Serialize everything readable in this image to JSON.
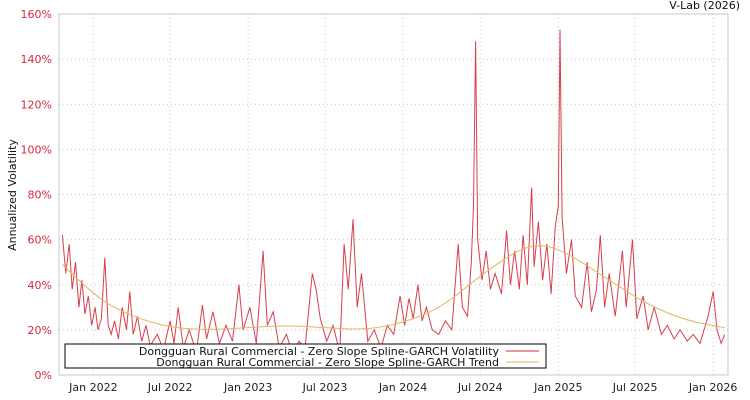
{
  "credit": "V-Lab (2026)",
  "chart_data": {
    "type": "line",
    "title": "",
    "xlabel": "",
    "ylabel": "Annualized Volatility",
    "ylim": [
      0,
      160
    ],
    "y_ticks": [
      "0%",
      "20%",
      "40%",
      "60%",
      "80%",
      "100%",
      "120%",
      "140%",
      "160%"
    ],
    "x_ticks": [
      "Jan 2022",
      "Jul 2022",
      "Jan 2023",
      "Jul 2023",
      "Jan 2024",
      "Jul 2024",
      "Jan 2025",
      "Jul 2025",
      "Jan 2026"
    ],
    "x_range": [
      "2021-10",
      "2026-02"
    ],
    "grid": true,
    "legend_position": "lower-left",
    "colors": {
      "volatility": "#d42a3a",
      "trend": "#e0b860",
      "ytick": "#d42a3a",
      "grid": "#c8c8c8"
    },
    "series": [
      {
        "name": "Dongguan Rural Commercial - Zero Slope Spline-GARCH Volatility",
        "points": [
          [
            "2021-10-20",
            62
          ],
          [
            "2021-10-28",
            45
          ],
          [
            "2021-11-05",
            58
          ],
          [
            "2021-11-12",
            38
          ],
          [
            "2021-11-20",
            50
          ],
          [
            "2021-11-28",
            30
          ],
          [
            "2021-12-05",
            42
          ],
          [
            "2021-12-12",
            27
          ],
          [
            "2021-12-20",
            35
          ],
          [
            "2021-12-28",
            22
          ],
          [
            "2022-01-05",
            30
          ],
          [
            "2022-01-12",
            20
          ],
          [
            "2022-01-20",
            25
          ],
          [
            "2022-01-28",
            52
          ],
          [
            "2022-02-05",
            22
          ],
          [
            "2022-02-12",
            18
          ],
          [
            "2022-02-20",
            24
          ],
          [
            "2022-03-01",
            16
          ],
          [
            "2022-03-10",
            30
          ],
          [
            "2022-03-20",
            20
          ],
          [
            "2022-03-28",
            37
          ],
          [
            "2022-04-05",
            18
          ],
          [
            "2022-04-15",
            26
          ],
          [
            "2022-04-25",
            15
          ],
          [
            "2022-05-05",
            22
          ],
          [
            "2022-05-15",
            13
          ],
          [
            "2022-06-01",
            18
          ],
          [
            "2022-06-15",
            11
          ],
          [
            "2022-07-01",
            24
          ],
          [
            "2022-07-10",
            14
          ],
          [
            "2022-07-20",
            30
          ],
          [
            "2022-08-01",
            12
          ],
          [
            "2022-08-15",
            20
          ],
          [
            "2022-09-01",
            10
          ],
          [
            "2022-09-15",
            31
          ],
          [
            "2022-09-25",
            16
          ],
          [
            "2022-10-10",
            28
          ],
          [
            "2022-10-25",
            14
          ],
          [
            "2022-11-10",
            22
          ],
          [
            "2022-11-25",
            15
          ],
          [
            "2022-12-10",
            40
          ],
          [
            "2022-12-20",
            20
          ],
          [
            "2023-01-05",
            30
          ],
          [
            "2023-01-20",
            14
          ],
          [
            "2023-02-05",
            55
          ],
          [
            "2023-02-15",
            22
          ],
          [
            "2023-03-01",
            28
          ],
          [
            "2023-03-15",
            12
          ],
          [
            "2023-04-01",
            18
          ],
          [
            "2023-04-15",
            10
          ],
          [
            "2023-05-01",
            15
          ],
          [
            "2023-05-15",
            12
          ],
          [
            "2023-06-01",
            45
          ],
          [
            "2023-06-10",
            38
          ],
          [
            "2023-06-20",
            25
          ],
          [
            "2023-07-05",
            15
          ],
          [
            "2023-07-20",
            22
          ],
          [
            "2023-08-05",
            10
          ],
          [
            "2023-08-15",
            58
          ],
          [
            "2023-08-25",
            38
          ],
          [
            "2023-09-05",
            69
          ],
          [
            "2023-09-15",
            30
          ],
          [
            "2023-09-25",
            45
          ],
          [
            "2023-10-10",
            15
          ],
          [
            "2023-10-25",
            20
          ],
          [
            "2023-11-10",
            12
          ],
          [
            "2023-11-25",
            22
          ],
          [
            "2023-12-10",
            18
          ],
          [
            "2023-12-25",
            35
          ],
          [
            "2024-01-05",
            22
          ],
          [
            "2024-01-15",
            34
          ],
          [
            "2024-01-25",
            25
          ],
          [
            "2024-02-05",
            40
          ],
          [
            "2024-02-15",
            24
          ],
          [
            "2024-02-25",
            30
          ],
          [
            "2024-03-10",
            20
          ],
          [
            "2024-03-25",
            18
          ],
          [
            "2024-04-10",
            24
          ],
          [
            "2024-04-25",
            20
          ],
          [
            "2024-05-10",
            58
          ],
          [
            "2024-05-20",
            30
          ],
          [
            "2024-06-01",
            26
          ],
          [
            "2024-06-10",
            50
          ],
          [
            "2024-06-15",
            75
          ],
          [
            "2024-06-20",
            148
          ],
          [
            "2024-06-25",
            60
          ],
          [
            "2024-07-05",
            42
          ],
          [
            "2024-07-15",
            55
          ],
          [
            "2024-07-25",
            38
          ],
          [
            "2024-08-05",
            45
          ],
          [
            "2024-08-20",
            36
          ],
          [
            "2024-09-01",
            64
          ],
          [
            "2024-09-10",
            40
          ],
          [
            "2024-09-20",
            55
          ],
          [
            "2024-10-01",
            38
          ],
          [
            "2024-10-10",
            62
          ],
          [
            "2024-10-20",
            40
          ],
          [
            "2024-10-30",
            83
          ],
          [
            "2024-11-05",
            48
          ],
          [
            "2024-11-15",
            68
          ],
          [
            "2024-11-25",
            42
          ],
          [
            "2024-12-05",
            58
          ],
          [
            "2024-12-15",
            36
          ],
          [
            "2024-12-25",
            66
          ],
          [
            "2025-01-01",
            75
          ],
          [
            "2025-01-05",
            153
          ],
          [
            "2025-01-10",
            70
          ],
          [
            "2025-01-20",
            45
          ],
          [
            "2025-02-01",
            60
          ],
          [
            "2025-02-10",
            35
          ],
          [
            "2025-02-25",
            30
          ],
          [
            "2025-03-10",
            50
          ],
          [
            "2025-03-20",
            28
          ],
          [
            "2025-04-01",
            38
          ],
          [
            "2025-04-10",
            62
          ],
          [
            "2025-04-20",
            30
          ],
          [
            "2025-05-01",
            45
          ],
          [
            "2025-05-15",
            26
          ],
          [
            "2025-06-01",
            55
          ],
          [
            "2025-06-10",
            30
          ],
          [
            "2025-06-25",
            60
          ],
          [
            "2025-07-05",
            25
          ],
          [
            "2025-07-20",
            35
          ],
          [
            "2025-08-01",
            20
          ],
          [
            "2025-08-15",
            30
          ],
          [
            "2025-09-01",
            18
          ],
          [
            "2025-09-15",
            22
          ],
          [
            "2025-10-01",
            16
          ],
          [
            "2025-10-15",
            20
          ],
          [
            "2025-11-01",
            15
          ],
          [
            "2025-11-15",
            18
          ],
          [
            "2025-12-01",
            14
          ],
          [
            "2025-12-20",
            26
          ],
          [
            "2026-01-01",
            37
          ],
          [
            "2026-01-10",
            20
          ],
          [
            "2026-01-20",
            14
          ],
          [
            "2026-01-28",
            18
          ]
        ]
      },
      {
        "name": "Dongguan Rural Commercial - Zero Slope Spline-GARCH Trend",
        "points": [
          [
            "2021-10-20",
            49
          ],
          [
            "2022-01-01",
            35
          ],
          [
            "2022-04-01",
            26
          ],
          [
            "2022-07-01",
            21
          ],
          [
            "2022-10-01",
            20
          ],
          [
            "2023-01-01",
            21
          ],
          [
            "2023-04-01",
            22
          ],
          [
            "2023-07-01",
            21
          ],
          [
            "2023-10-01",
            20
          ],
          [
            "2024-01-01",
            23
          ],
          [
            "2024-04-01",
            30
          ],
          [
            "2024-07-01",
            44
          ],
          [
            "2024-10-01",
            56
          ],
          [
            "2024-12-01",
            58
          ],
          [
            "2025-02-01",
            53
          ],
          [
            "2025-05-01",
            42
          ],
          [
            "2025-08-01",
            31
          ],
          [
            "2025-11-01",
            24
          ],
          [
            "2026-01-28",
            21
          ]
        ]
      }
    ]
  }
}
